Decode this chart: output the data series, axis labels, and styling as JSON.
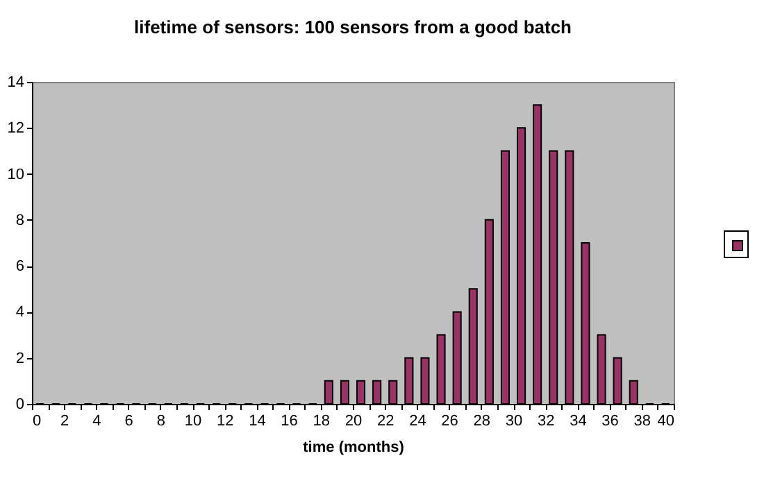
{
  "chart_data": {
    "type": "histogram",
    "title": "lifetime of sensors:  100 sensors from a good batch",
    "xlabel": "time (months)",
    "bins": [
      0,
      1,
      2,
      3,
      4,
      5,
      6,
      7,
      8,
      9,
      10,
      11,
      12,
      13,
      14,
      15,
      16,
      17,
      18,
      19,
      20,
      21,
      22,
      23,
      24,
      25,
      26,
      27,
      28,
      29,
      30,
      31,
      32,
      33,
      34,
      35,
      36,
      37,
      38,
      39,
      40
    ],
    "values": [
      0,
      0,
      0,
      0,
      0,
      0,
      0,
      0,
      0,
      0,
      0,
      0,
      0,
      0,
      0,
      0,
      0,
      0,
      1,
      1,
      1,
      1,
      1,
      2,
      2,
      3,
      4,
      5,
      8,
      11,
      12,
      13,
      11,
      11,
      7,
      3,
      2,
      1,
      0,
      0
    ],
    "color": "#993366",
    "xlim": [
      0,
      40
    ],
    "xticks": [
      0,
      {
        "value": 1,
        "label": null
      },
      2,
      {
        "value": 3,
        "label": null
      },
      4,
      {
        "value": 5,
        "label": null
      },
      6,
      {
        "value": 7,
        "label": null
      },
      8,
      {
        "value": 9,
        "label": null
      },
      10,
      {
        "value": 11,
        "label": null
      },
      12,
      {
        "value": 13,
        "label": null
      },
      14,
      {
        "value": 15,
        "label": null
      },
      16,
      {
        "value": 17,
        "label": null
      },
      18,
      {
        "value": 19,
        "label": null
      },
      20,
      {
        "value": 21,
        "label": null
      },
      22,
      {
        "value": 23,
        "label": null
      },
      24,
      {
        "value": 25,
        "label": null
      },
      26,
      {
        "value": 27,
        "label": null
      },
      28,
      {
        "value": 29,
        "label": null
      },
      30,
      {
        "value": 31,
        "label": null
      },
      32,
      {
        "value": 33,
        "label": null
      },
      34,
      {
        "value": 35,
        "label": null
      },
      36,
      {
        "value": 37,
        "label": null
      },
      38,
      {
        "value": 39,
        "label": null
      },
      40
    ],
    "ylim": [
      0,
      14
    ],
    "yticks": [
      0,
      2,
      4,
      6,
      8,
      10,
      12,
      14
    ],
    "grid": false
  }
}
